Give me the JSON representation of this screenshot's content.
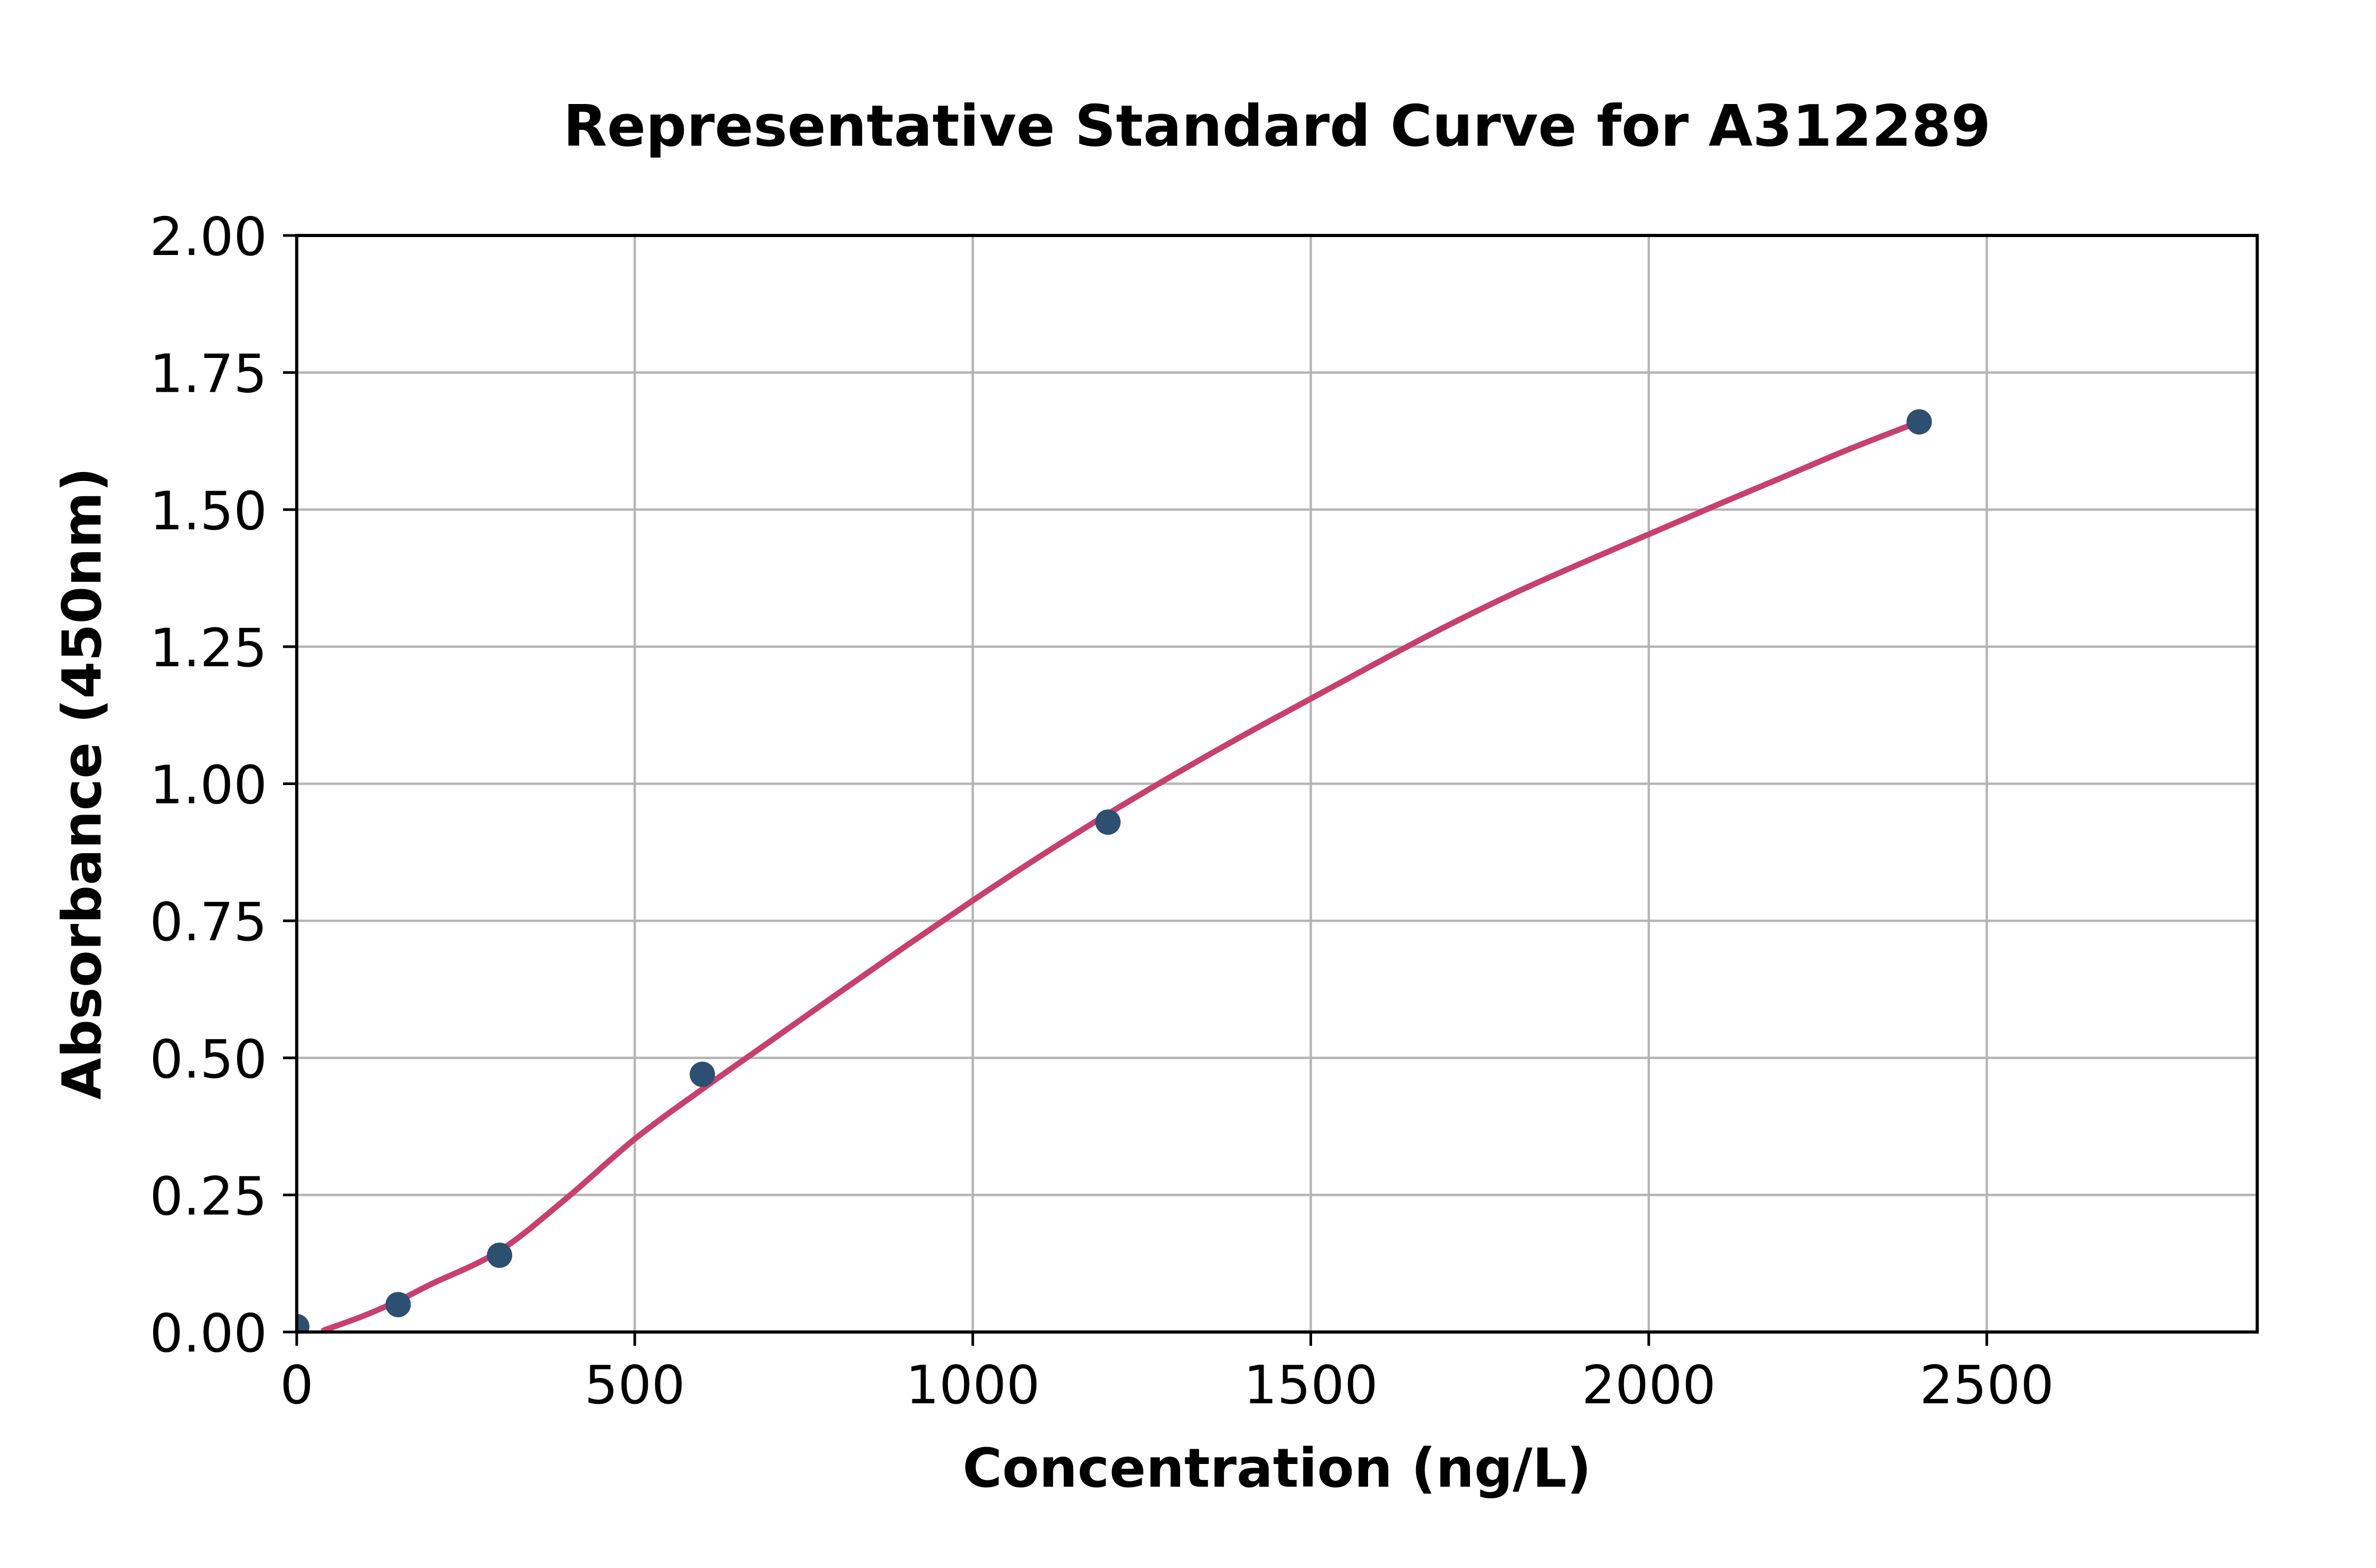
{
  "chart_data": {
    "type": "scatter",
    "title": "Representative Standard Curve for A312289",
    "xlabel": "Concentration (ng/L)",
    "ylabel": "Absorbance (450nm)",
    "xlim": [
      0,
      2900
    ],
    "ylim": [
      0,
      2.0
    ],
    "grid": true,
    "legend": null,
    "x_ticks": {
      "values": [
        0,
        500,
        1000,
        1500,
        2000,
        2500
      ],
      "labels": [
        "0",
        "500",
        "1000",
        "1500",
        "2000",
        "2500"
      ]
    },
    "y_ticks": {
      "values": [
        0,
        0.25,
        0.5,
        0.75,
        1.0,
        1.25,
        1.5,
        1.75,
        2.0
      ],
      "labels": [
        "0.00",
        "0.25",
        "0.50",
        "0.75",
        "1.00",
        "1.25",
        "1.50",
        "1.75",
        "2.00"
      ]
    },
    "series": [
      {
        "name": "standard-points",
        "type": "scatter",
        "marker": "circle",
        "color": "#2d4f71",
        "x": [
          0,
          150,
          300,
          600,
          1200,
          2400
        ],
        "y": [
          0.01,
          0.05,
          0.14,
          0.47,
          0.93,
          1.66
        ]
      },
      {
        "name": "fitted-curve",
        "type": "line",
        "color": "#c8406f",
        "x": [
          40,
          100,
          150,
          200,
          300,
          400,
          500,
          600,
          700,
          800,
          900,
          1000,
          1100,
          1200,
          1300,
          1400,
          1500,
          1600,
          1700,
          1800,
          1900,
          2000,
          2100,
          2200,
          2300,
          2400
        ],
        "y": [
          0.003,
          0.03,
          0.057,
          0.088,
          0.148,
          0.245,
          0.352,
          0.443,
          0.53,
          0.617,
          0.703,
          0.787,
          0.868,
          0.945,
          1.018,
          1.088,
          1.155,
          1.222,
          1.287,
          1.347,
          1.402,
          1.455,
          1.508,
          1.56,
          1.612,
          1.66
        ]
      }
    ],
    "colors": {
      "background": "#ffffff",
      "axis": "#000000",
      "grid": "#b5b5b5",
      "point": "#2d4f71",
      "curve": "#c8406f",
      "text": "#000000"
    }
  }
}
